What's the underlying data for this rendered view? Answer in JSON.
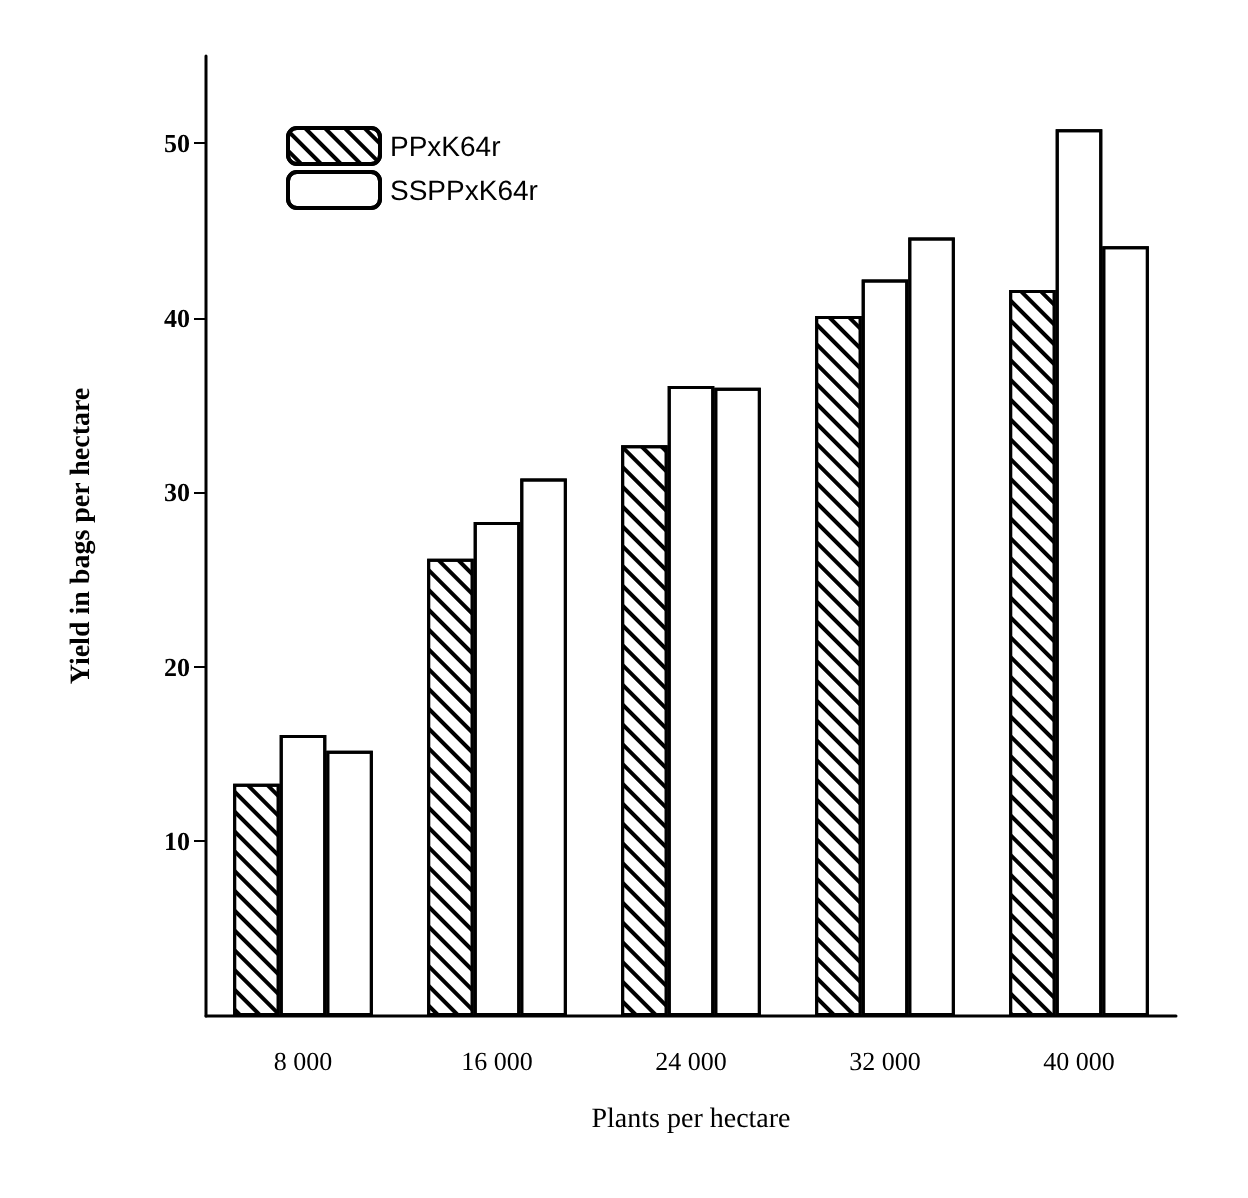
{
  "chart_data": {
    "type": "bar",
    "xlabel": "Plants per hectare",
    "ylabel": "Yield in bags per hectare",
    "categories": [
      "8 000",
      "16 000",
      "24 000",
      "32 000",
      "40 000"
    ],
    "series": [
      {
        "name": "PPxK64r",
        "color": "#ffffff",
        "values": [
          13.3,
          26.2,
          32.7,
          40.1,
          41.6
        ]
      },
      {
        "name": "SSPPxK64r",
        "color": "#ffffff",
        "values": [
          16.1,
          28.3,
          36.1,
          42.2,
          50.8
        ]
      },
      {
        "color": "#ffffff",
        "values": [
          15.2,
          30.8,
          36.0,
          44.6,
          44.1
        ]
      }
    ],
    "ylim": [
      0,
      55
    ],
    "yticks": [
      10,
      20,
      30,
      40,
      50
    ],
    "grid": false,
    "legend": "top left"
  }
}
